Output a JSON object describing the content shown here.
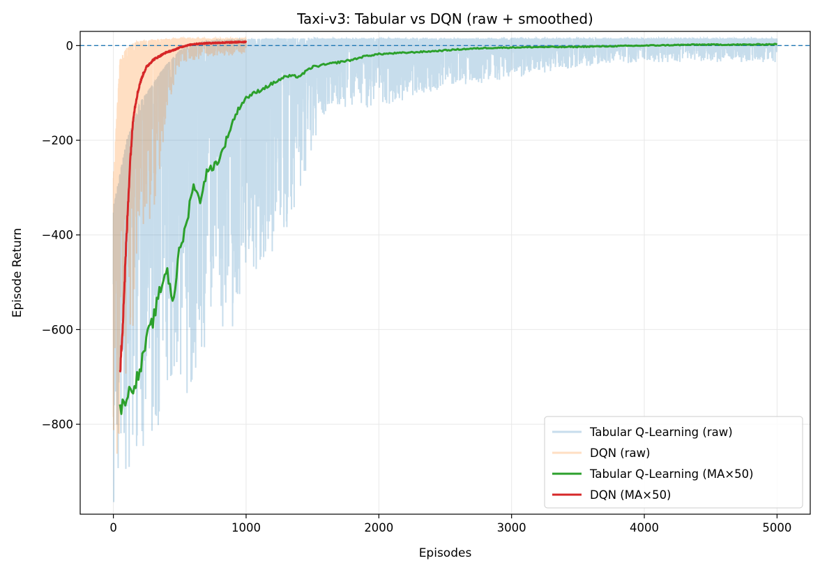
{
  "chart_data": {
    "type": "line",
    "title": "Taxi-v3: Tabular vs DQN (raw + smoothed)",
    "xlabel": "Episodes",
    "ylabel": "Episode Return",
    "xlim": [
      -250,
      5250
    ],
    "ylim": [
      -990,
      30
    ],
    "x_ticks": [
      0,
      1000,
      2000,
      3000,
      4000,
      5000
    ],
    "y_ticks": [
      0,
      -200,
      -400,
      -600,
      -800
    ],
    "x_tick_labels": [
      "0",
      "1000",
      "2000",
      "3000",
      "4000",
      "5000"
    ],
    "y_tick_labels": [
      "0",
      "−200",
      "−400",
      "−600",
      "−800"
    ],
    "grid": true,
    "legend_position": "lower-right",
    "reference_line": {
      "y": 0,
      "style": "dashed",
      "color": "#1f77b4"
    },
    "series": [
      {
        "name": "Tabular Q-Learning (raw)",
        "role": "raw",
        "color": "#1f77b4",
        "opacity": 0.25,
        "episodes": 5000,
        "envelope_x": [
          0,
          100,
          200,
          300,
          400,
          500,
          600,
          700,
          800,
          1000,
          1200,
          1400,
          1600,
          2000,
          2500,
          3000,
          3500,
          4000,
          5000
        ],
        "envelope_low": [
          -975,
          -900,
          -880,
          -830,
          -800,
          -750,
          -730,
          -700,
          -650,
          -550,
          -480,
          -310,
          -140,
          -130,
          -90,
          -70,
          -45,
          -35,
          -35
        ],
        "envelope_high": [
          -340,
          -200,
          -120,
          -80,
          -40,
          -10,
          5,
          10,
          12,
          14,
          15,
          15,
          15,
          15,
          15,
          15,
          15,
          15,
          15
        ]
      },
      {
        "name": "DQN (raw)",
        "role": "raw",
        "color": "#ff7f0e",
        "opacity": 0.25,
        "episodes": 1000,
        "envelope_x": [
          0,
          50,
          100,
          150,
          200,
          300,
          400,
          500,
          700,
          1000
        ],
        "envelope_low": [
          -890,
          -850,
          -700,
          -600,
          -450,
          -370,
          -150,
          -40,
          -25,
          -20
        ],
        "envelope_high": [
          -280,
          -30,
          -5,
          5,
          10,
          12,
          14,
          15,
          15,
          15
        ]
      },
      {
        "name": "Tabular Q-Learning (MA×50)",
        "role": "smoothed",
        "color": "#2ca02c",
        "x": [
          50,
          100,
          150,
          200,
          250,
          300,
          350,
          400,
          450,
          500,
          550,
          600,
          650,
          700,
          750,
          800,
          850,
          900,
          950,
          1000,
          1100,
          1200,
          1300,
          1400,
          1500,
          1600,
          1700,
          1800,
          1900,
          2000,
          2200,
          2400,
          2600,
          2800,
          3000,
          3200,
          3400,
          3600,
          3800,
          4000,
          4200,
          4400,
          4600,
          4800,
          5000
        ],
        "y": [
          -770,
          -740,
          -720,
          -690,
          -620,
          -580,
          -520,
          -470,
          -540,
          -430,
          -380,
          -290,
          -330,
          -270,
          -255,
          -240,
          -200,
          -160,
          -130,
          -110,
          -95,
          -80,
          -65,
          -65,
          -45,
          -40,
          -35,
          -30,
          -22,
          -18,
          -15,
          -12,
          -8,
          -5,
          -4,
          -3,
          -3,
          -2,
          -1,
          0,
          1,
          2,
          2,
          2,
          3
        ]
      },
      {
        "name": "DQN (MA×50)",
        "role": "smoothed",
        "color": "#d62728",
        "x": [
          50,
          75,
          100,
          125,
          150,
          175,
          200,
          225,
          250,
          300,
          350,
          400,
          450,
          500,
          550,
          600,
          700,
          800,
          900,
          1000
        ],
        "y": [
          -700,
          -560,
          -400,
          -250,
          -150,
          -110,
          -80,
          -60,
          -45,
          -30,
          -22,
          -14,
          -10,
          -4,
          0,
          3,
          5,
          6,
          7,
          8
        ]
      }
    ]
  }
}
